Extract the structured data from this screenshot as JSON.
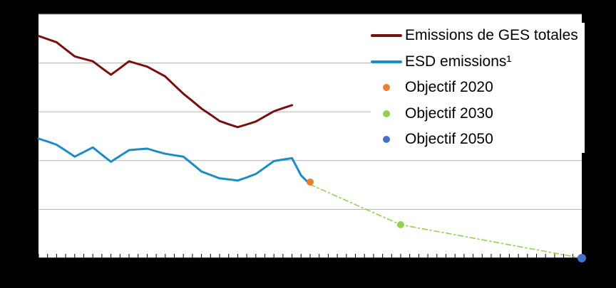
{
  "chart_data": {
    "type": "line",
    "title": "",
    "xlabel": "",
    "ylabel": "",
    "x_range": [
      1990,
      2050
    ],
    "ylim": [
      0,
      100
    ],
    "grid": true,
    "legend_position": "top-right",
    "series": [
      {
        "name": "Emissions de GES totales",
        "kind": "line",
        "color": "#7b0f0f",
        "x": [
          1990,
          1991,
          1992,
          1993,
          1994,
          1995,
          1996,
          1997,
          1998,
          1999,
          2000,
          2001,
          2002,
          2003,
          2004,
          2005,
          2006,
          2007,
          2008,
          2009,
          2010,
          2011,
          2012,
          2013,
          2014,
          2015,
          2016,
          2017,
          2018
        ],
        "y": [
          91.1,
          89.8,
          88.5,
          85.6,
          82.7,
          81.7,
          80.7,
          77.9,
          75.2,
          77.9,
          80.7,
          79.6,
          78.5,
          76.5,
          74.5,
          70.9,
          67.4,
          64.4,
          61.3,
          58.8,
          56.2,
          54.9,
          53.7,
          54.8,
          56.0,
          58.1,
          60.2,
          61.5,
          62.7
        ]
      },
      {
        "name": "ESD emissions¹",
        "kind": "line",
        "color": "#1b8cc4",
        "x": [
          1990,
          1991,
          1992,
          1993,
          1994,
          1995,
          1996,
          1997,
          1998,
          1999,
          2000,
          2001,
          2002,
          2003,
          2004,
          2005,
          2006,
          2007,
          2008,
          2009,
          2010,
          2011,
          2012,
          2013,
          2014,
          2015,
          2016,
          2017,
          2018,
          2019,
          2020
        ],
        "y": [
          49.0,
          47.8,
          46.5,
          44.1,
          41.6,
          43.5,
          45.4,
          42.4,
          39.5,
          41.9,
          44.3,
          44.6,
          44.9,
          43.8,
          42.8,
          42.2,
          41.6,
          38.6,
          35.5,
          34.1,
          32.7,
          32.3,
          31.8,
          33.1,
          34.5,
          37.1,
          39.8,
          40.4,
          41.0,
          33.9,
          30.2
        ]
      },
      {
        "name": "Objectif 2020",
        "kind": "point",
        "color": "#ed7d31",
        "x": [
          2020
        ],
        "y": [
          31.2
        ]
      },
      {
        "name": "Objectif 2030",
        "kind": "point",
        "color": "#92d050",
        "x": [
          2030
        ],
        "y": [
          13.7
        ]
      },
      {
        "name": "Objectif 2050",
        "kind": "point",
        "color": "#4472c4",
        "x": [
          2050
        ],
        "y": [
          0
        ]
      },
      {
        "name": "",
        "kind": "dashdot",
        "color": "#92d050",
        "x": [
          2020,
          2030,
          2050
        ],
        "y": [
          30.2,
          13.7,
          0
        ]
      }
    ]
  }
}
